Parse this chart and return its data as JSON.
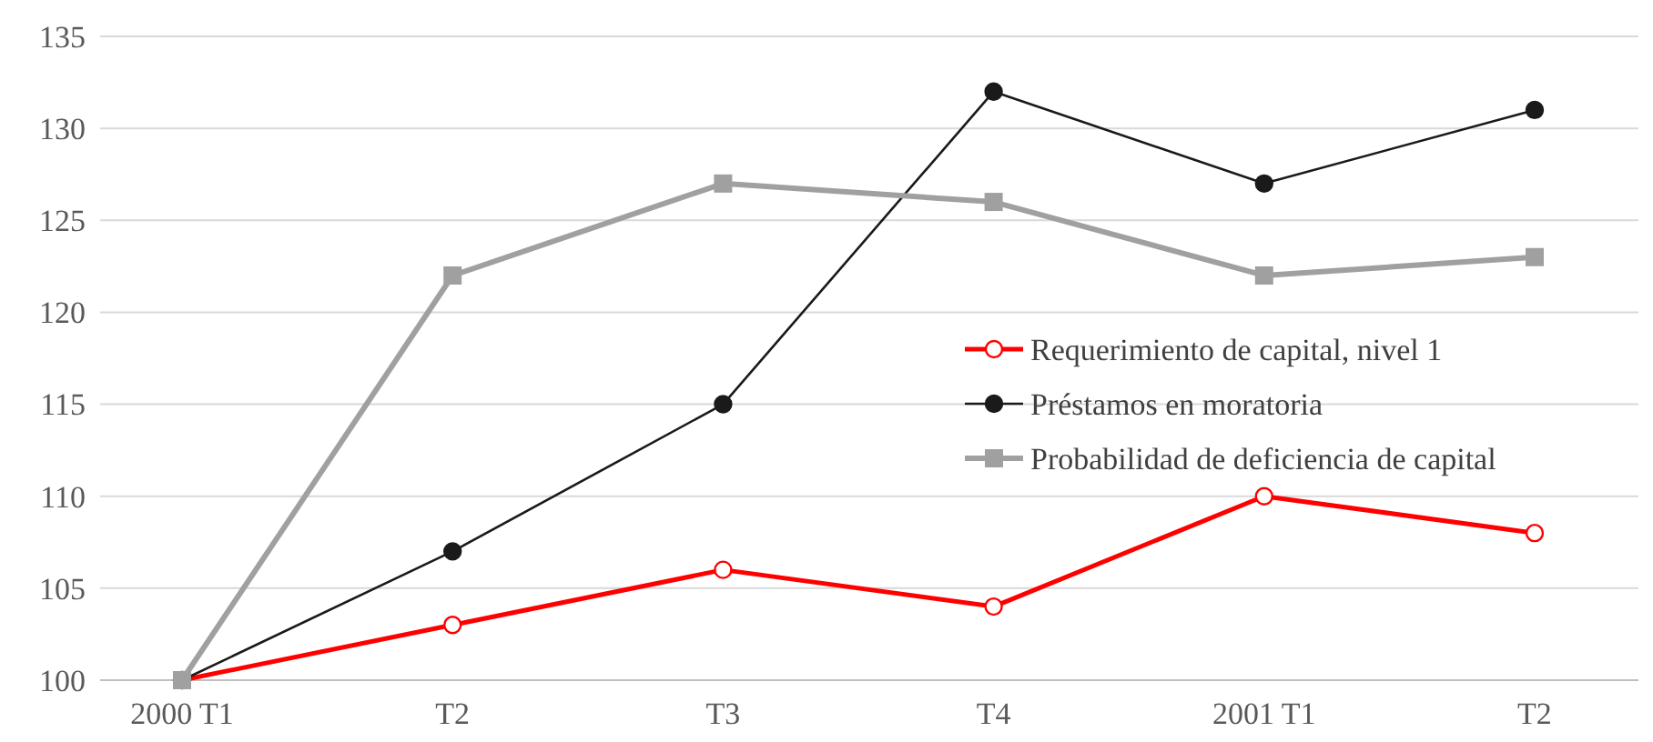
{
  "chart_data": {
    "type": "line",
    "categories": [
      "2000 T1",
      "T2",
      "T3",
      "T4",
      "2001 T1",
      "T2"
    ],
    "series": [
      {
        "name": "Requerimiento de capital, nivel 1",
        "color": "#ff0000",
        "marker": "circle",
        "values": [
          100,
          103,
          106,
          104,
          110,
          108
        ]
      },
      {
        "name": "Préstamos en moratoria",
        "color": "#1a1a1a",
        "marker": "circle",
        "values": [
          100,
          107,
          115,
          132,
          127,
          131
        ]
      },
      {
        "name": "Probabilidad de deficiencia de capital",
        "color": "#a0a0a0",
        "marker": "square",
        "values": [
          100,
          122,
          127,
          126,
          122,
          123
        ]
      }
    ],
    "ylim": [
      100,
      135
    ],
    "yticks": [
      100,
      105,
      110,
      115,
      120,
      125,
      130,
      135
    ],
    "grid": "y",
    "legend": "right",
    "line_style": "solid"
  }
}
